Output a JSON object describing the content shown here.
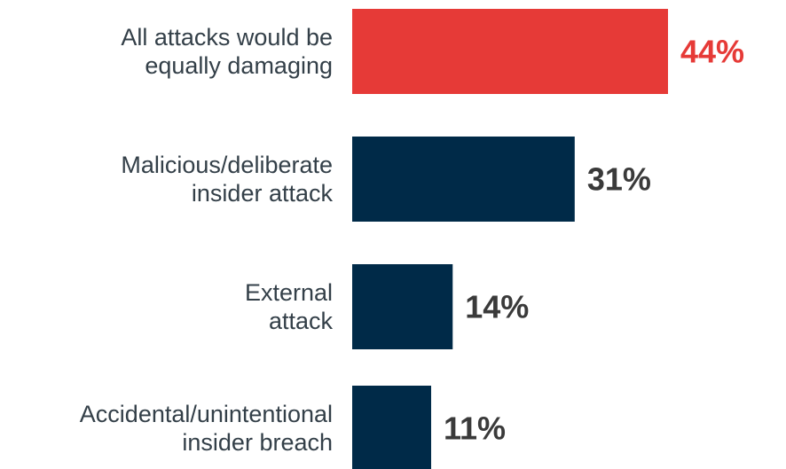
{
  "chart_data": {
    "type": "bar",
    "orientation": "horizontal",
    "categories": [
      [
        "All attacks would be",
        "equally damaging"
      ],
      [
        "Malicious/deliberate",
        "insider attack"
      ],
      [
        "External",
        "attack"
      ],
      [
        "Accidental/unintentional",
        "insider breach"
      ]
    ],
    "values": [
      44,
      31,
      14,
      11
    ],
    "value_labels": [
      "44%",
      "31%",
      "14%",
      "11%"
    ],
    "unit": "%",
    "xlim": [
      0,
      44
    ],
    "grid": false,
    "legend": "none",
    "colors": {
      "highlight": "#e63a37",
      "default": "#002a48",
      "default_text": "#3a3a3a",
      "category_text": "#333f48"
    },
    "highlight_index": 0
  }
}
